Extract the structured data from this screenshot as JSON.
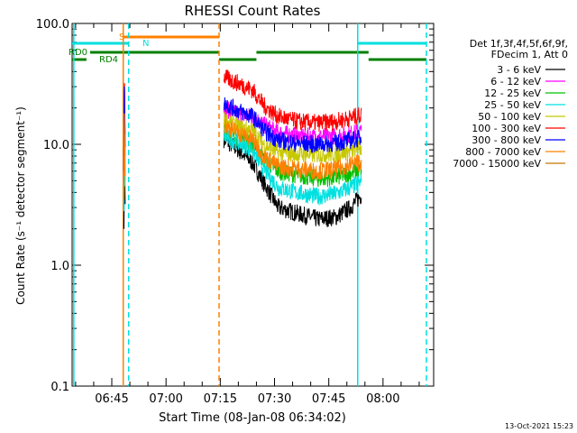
{
  "chart_data": {
    "type": "line",
    "title": "RHESSI Count Rates",
    "xlabel": "Start Time (08-Jan-08 06:34:02)",
    "ylabel": "Count Rate (s⁻¹ detector segment⁻¹)",
    "yscale": "log",
    "ylim": [
      0.1,
      100
    ],
    "xlim": [
      "06:34:02",
      "08:14:00"
    ],
    "x_ticks": [
      {
        "t": "06:45",
        "label": "06:45"
      },
      {
        "t": "07:00",
        "label": "07:00"
      },
      {
        "t": "07:15",
        "label": "07:15"
      },
      {
        "t": "07:30",
        "label": "07:30"
      },
      {
        "t": "07:45",
        "label": "07:45"
      },
      {
        "t": "08:00",
        "label": "08:00"
      }
    ],
    "y_ticks": [
      {
        "v": 0.1,
        "label": "0.1"
      },
      {
        "v": 1,
        "label": "1.0"
      },
      {
        "v": 10,
        "label": "10.0"
      },
      {
        "v": 100,
        "label": "100.0"
      }
    ],
    "legend_placement": "right",
    "legend_header": [
      "Det 1f,3f,4f,5f,6f,9f,",
      "FDecim 1, Att 0"
    ],
    "series": [
      {
        "name": "3 - 6 keV",
        "color": "#000000",
        "seg2": [
          [
            "07:16",
            11.0
          ],
          [
            "07:20",
            9.0
          ],
          [
            "07:24",
            7.0
          ],
          [
            "07:27",
            4.8
          ],
          [
            "07:31",
            3.0
          ],
          [
            "07:36",
            2.7
          ],
          [
            "07:42",
            2.4
          ],
          [
            "07:47",
            2.5
          ],
          [
            "07:51",
            3.0
          ],
          [
            "07:54",
            3.8
          ]
        ],
        "seg1": [
          [
            "06:48:20",
            2.0
          ],
          [
            "06:48:30",
            9.0
          ],
          [
            "06:48:40",
            3.2
          ]
        ]
      },
      {
        "name": "6 - 12 keV",
        "color": "#ff00ff",
        "seg2": [
          [
            "07:16",
            20.0
          ],
          [
            "07:20",
            17.5
          ],
          [
            "07:24",
            17.0
          ],
          [
            "07:27",
            14.5
          ],
          [
            "07:31",
            12.5
          ],
          [
            "07:36",
            11.8
          ],
          [
            "07:42",
            11.5
          ],
          [
            "07:47",
            11.7
          ],
          [
            "07:51",
            12.2
          ],
          [
            "07:54",
            12.8
          ]
        ],
        "seg1": [
          [
            "06:48:20",
            5.0
          ],
          [
            "06:48:30",
            28.0
          ],
          [
            "06:48:40",
            8.0
          ]
        ]
      },
      {
        "name": "12 - 25 keV",
        "color": "#00c000",
        "seg2": [
          [
            "07:16",
            13.0
          ],
          [
            "07:20",
            11.5
          ],
          [
            "07:24",
            10.0
          ],
          [
            "07:27",
            7.5
          ],
          [
            "07:31",
            6.0
          ],
          [
            "07:36",
            5.6
          ],
          [
            "07:42",
            5.2
          ],
          [
            "07:47",
            5.3
          ],
          [
            "07:51",
            5.8
          ],
          [
            "07:54",
            6.2
          ]
        ],
        "seg1": [
          [
            "06:48:20",
            3.0
          ],
          [
            "06:48:30",
            16.0
          ],
          [
            "06:48:40",
            5.0
          ]
        ]
      },
      {
        "name": "25 - 50 keV",
        "color": "#00e0e0",
        "seg2": [
          [
            "07:16",
            11.5
          ],
          [
            "07:20",
            10.5
          ],
          [
            "07:24",
            9.0
          ],
          [
            "07:27",
            6.3
          ],
          [
            "07:31",
            4.4
          ],
          [
            "07:36",
            4.0
          ],
          [
            "07:42",
            3.7
          ],
          [
            "07:47",
            3.9
          ],
          [
            "07:51",
            4.4
          ],
          [
            "07:54",
            4.9
          ]
        ],
        "seg1": [
          [
            "06:48:20",
            2.8
          ],
          [
            "06:48:30",
            14.0
          ],
          [
            "06:48:40",
            4.5
          ]
        ]
      },
      {
        "name": "50 - 100 keV",
        "color": "#c8c800",
        "seg2": [
          [
            "07:16",
            16.0
          ],
          [
            "07:20",
            14.0
          ],
          [
            "07:24",
            13.0
          ],
          [
            "07:27",
            10.0
          ],
          [
            "07:31",
            8.6
          ],
          [
            "07:36",
            8.3
          ],
          [
            "07:42",
            8.2
          ],
          [
            "07:47",
            8.3
          ],
          [
            "07:51",
            8.8
          ],
          [
            "07:54",
            9.3
          ]
        ],
        "seg1": [
          [
            "06:48:20",
            4.0
          ],
          [
            "06:48:30",
            21.0
          ],
          [
            "06:48:40",
            6.5
          ]
        ]
      },
      {
        "name": "100 - 300 keV",
        "color": "#ff0000",
        "seg2": [
          [
            "07:16",
            36.0
          ],
          [
            "07:20",
            32.0
          ],
          [
            "07:24",
            28.0
          ],
          [
            "07:27",
            21.0
          ],
          [
            "07:31",
            17.0
          ],
          [
            "07:36",
            15.5
          ],
          [
            "07:42",
            15.0
          ],
          [
            "07:47",
            15.5
          ],
          [
            "07:51",
            16.5
          ],
          [
            "07:54",
            17.5
          ]
        ],
        "seg1": [
          [
            "06:48:20",
            8.0
          ],
          [
            "06:48:30",
            32.0
          ],
          [
            "06:48:40",
            12.0
          ]
        ]
      },
      {
        "name": "300 - 800 keV",
        "color": "#0000ff",
        "seg2": [
          [
            "07:16",
            22.0
          ],
          [
            "07:20",
            19.0
          ],
          [
            "07:24",
            17.0
          ],
          [
            "07:27",
            13.0
          ],
          [
            "07:31",
            10.8
          ],
          [
            "07:36",
            10.2
          ],
          [
            "07:42",
            10.0
          ],
          [
            "07:47",
            10.2
          ],
          [
            "07:51",
            10.8
          ],
          [
            "07:54",
            11.3
          ]
        ],
        "seg1": [
          [
            "06:48:20",
            6.0
          ],
          [
            "06:48:30",
            30.0
          ],
          [
            "06:48:40",
            9.5
          ]
        ]
      },
      {
        "name": "800 - 7000 keV",
        "color": "#ff8000",
        "seg2": [
          [
            "07:16",
            14.5
          ],
          [
            "07:20",
            12.5
          ],
          [
            "07:24",
            11.0
          ],
          [
            "07:27",
            8.0
          ],
          [
            "07:31",
            6.6
          ],
          [
            "07:36",
            6.3
          ],
          [
            "07:42",
            6.0
          ],
          [
            "07:47",
            6.2
          ],
          [
            "07:51",
            6.8
          ],
          [
            "07:54",
            7.3
          ]
        ],
        "seg1": [
          [
            "06:48:20",
            3.5
          ],
          [
            "06:48:30",
            18.0
          ],
          [
            "06:48:40",
            5.5
          ]
        ]
      },
      {
        "name": "7000 - 15000 keV",
        "color": "#c87800",
        "seg2": [],
        "seg1": []
      }
    ],
    "annotations": [
      {
        "text": "S",
        "color": "#ff8000"
      },
      {
        "text": "N",
        "color": "#00e0e0"
      },
      {
        "text": "RD0",
        "color": "#008000"
      },
      {
        "text": "RD4",
        "color": "#008000"
      }
    ],
    "flag_bars": [
      {
        "color": "#ff8000",
        "spans": [
          [
            "06:48:10",
            "07:14:40"
          ]
        ]
      },
      {
        "color": "#00e0e0",
        "spans": [
          [
            "06:34:02",
            "06:49:40"
          ],
          [
            "07:53:00",
            "08:12:00"
          ]
        ]
      },
      {
        "color": "#008000",
        "spans": [
          [
            "06:39:00",
            "07:14:40"
          ],
          [
            "07:25:00",
            "07:56:00"
          ]
        ]
      },
      {
        "color": "#008000",
        "spans": [
          [
            "06:34:02",
            "06:38:00"
          ],
          [
            "07:14:40",
            "07:25:00"
          ],
          [
            "07:56:00",
            "08:12:00"
          ]
        ]
      }
    ],
    "vlines": [
      {
        "t": "06:49:40",
        "color": "#00e0e0",
        "style": "dashed"
      },
      {
        "t": "07:14:40",
        "color": "#ff8000",
        "style": "dashed"
      },
      {
        "t": "07:53:00",
        "color": "#00e0e0",
        "style": "solid"
      },
      {
        "t": "08:12:00",
        "color": "#00e0e0",
        "style": "dashed"
      },
      {
        "t": "06:34:30",
        "color": "#00e0e0",
        "style": "solid"
      },
      {
        "t": "06:48:10",
        "color": "#ff8000",
        "style": "solid"
      }
    ]
  },
  "footer": {
    "date": "13-Oct-2021 15:23"
  }
}
